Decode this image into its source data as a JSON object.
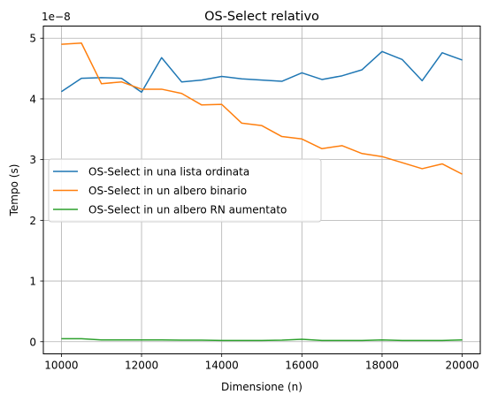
{
  "chart_data": {
    "type": "line",
    "title": "OS-Select relativo",
    "xlabel": "Dimensione (n)",
    "ylabel": "Tempo (s)",
    "y_scale_label": "1e−8",
    "y_multiplier": 1e-08,
    "xlim": [
      9550,
      20450
    ],
    "ylim": [
      -0.2,
      5.2
    ],
    "x_ticks": [
      10000,
      12000,
      14000,
      16000,
      18000,
      20000
    ],
    "x_tick_labels": [
      "10000",
      "12000",
      "14000",
      "16000",
      "18000",
      "20000"
    ],
    "y_ticks": [
      0,
      1,
      2,
      3,
      4,
      5
    ],
    "y_tick_labels": [
      "0",
      "1",
      "2",
      "3",
      "4",
      "5"
    ],
    "grid": true,
    "legend_position": "center-left",
    "x": [
      10000,
      10500,
      11000,
      11500,
      12000,
      12500,
      13000,
      13500,
      14000,
      14500,
      15000,
      15500,
      16000,
      16500,
      17000,
      17500,
      18000,
      18500,
      19000,
      19500,
      20000
    ],
    "series": [
      {
        "name": "OS-Select in una lista ordinata",
        "color": "#1f77b4",
        "values": [
          4.12,
          4.34,
          4.35,
          4.34,
          4.11,
          4.68,
          4.28,
          4.31,
          4.37,
          4.33,
          4.31,
          4.29,
          4.43,
          4.32,
          4.38,
          4.48,
          4.78,
          4.65,
          4.3,
          4.76,
          4.64
        ]
      },
      {
        "name": "OS-Select in un albero binario",
        "color": "#ff7f0e",
        "values": [
          4.9,
          4.92,
          4.25,
          4.28,
          4.16,
          4.16,
          4.09,
          3.9,
          3.91,
          3.6,
          3.56,
          3.38,
          3.34,
          3.18,
          3.23,
          3.1,
          3.05,
          2.95,
          2.85,
          2.93,
          2.76
        ]
      },
      {
        "name": "OS-Select in un albero RN aumentato",
        "color": "#2ca02c",
        "values": [
          0.05,
          0.05,
          0.03,
          0.03,
          0.03,
          0.03,
          0.025,
          0.025,
          0.02,
          0.02,
          0.02,
          0.025,
          0.04,
          0.02,
          0.02,
          0.02,
          0.03,
          0.02,
          0.02,
          0.02,
          0.03
        ]
      }
    ]
  }
}
